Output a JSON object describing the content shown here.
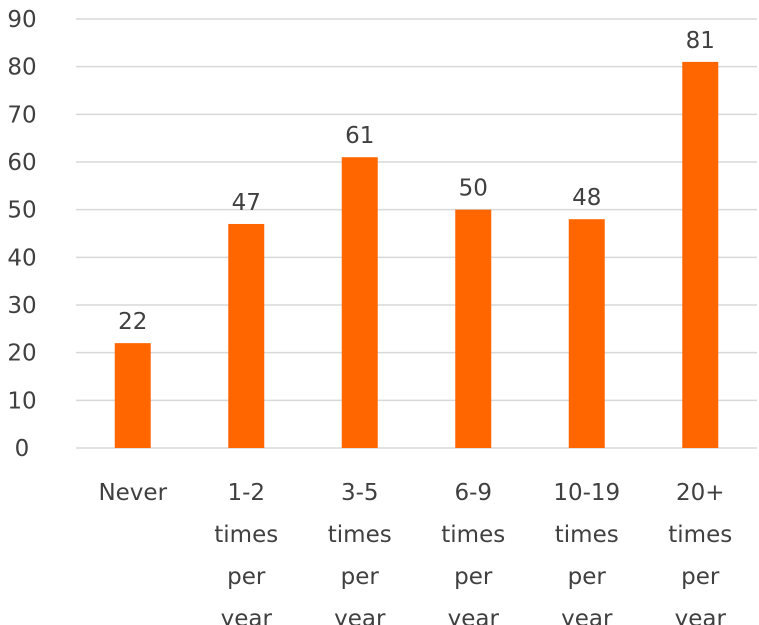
{
  "chart_data": {
    "type": "bar",
    "title": "",
    "xlabel": "",
    "ylabel": "",
    "categories": [
      [
        "Never"
      ],
      [
        "1-2",
        "times",
        "per",
        "year"
      ],
      [
        "3-5",
        "times",
        "per",
        "year"
      ],
      [
        "6-9",
        "times",
        "per",
        "year"
      ],
      [
        "10-19",
        "times",
        "per",
        "year"
      ],
      [
        "20+",
        "times",
        "per",
        "year"
      ]
    ],
    "values": [
      22,
      47,
      61,
      50,
      48,
      81
    ],
    "ylim": [
      0,
      90
    ],
    "yticks": [
      "0",
      "10",
      "20",
      "30",
      "40",
      "50",
      "60",
      "70",
      "80",
      "90"
    ],
    "grid": true,
    "legend": "none",
    "bar_color": "#FF6600"
  }
}
